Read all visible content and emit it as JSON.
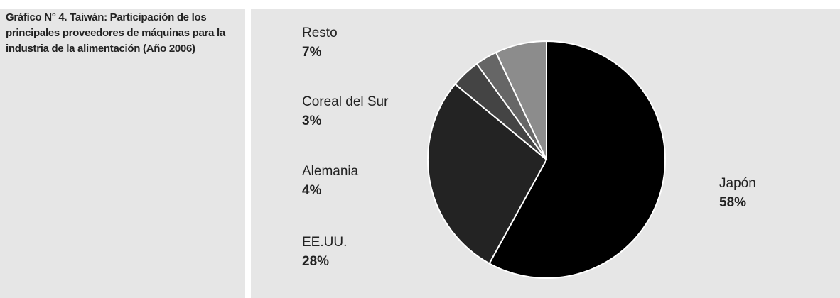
{
  "chart_data": {
    "type": "pie",
    "title": "Gráfico N° 4. Taiwán: Participación de los principales proveedores de máquinas para la industria de la alimentación (Año 2006)",
    "categories": [
      "Japón",
      "EE.UU.",
      "Alemania",
      "Coreal del Sur",
      "Resto"
    ],
    "values": [
      58,
      28,
      4,
      3,
      7
    ],
    "value_labels": [
      "58%",
      "28%",
      "4%",
      "3%",
      "7%"
    ],
    "colors": [
      "#000000",
      "#232323",
      "#444444",
      "#666666",
      "#8c8c8c"
    ]
  }
}
